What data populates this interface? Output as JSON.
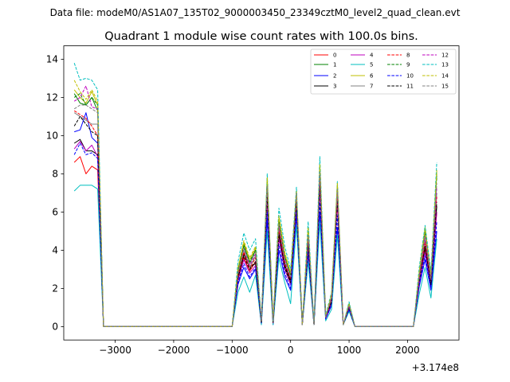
{
  "suptitle": "Data file: modeM0/AS1A07_135T02_9000003450_23349cztM0_level2_quad_clean.evt",
  "chart_data": {
    "type": "line",
    "title": "Quadrant 1 module wise count rates with 100.0s bins.",
    "xlabel": "",
    "ylabel": "",
    "x_offset_label": "+3.174e8",
    "xlim": [
      -3880,
      2880
    ],
    "ylim": [
      -0.7,
      14.7
    ],
    "xticks": [
      -3000,
      -2000,
      -1000,
      0,
      1000,
      2000
    ],
    "xtick_labels": [
      "−3000",
      "−2000",
      "−1000",
      "0",
      "1000",
      "2000"
    ],
    "yticks": [
      0,
      2,
      4,
      6,
      8,
      10,
      12,
      14
    ],
    "ytick_labels": [
      "0",
      "2",
      "4",
      "6",
      "8",
      "10",
      "12",
      "14"
    ],
    "grid": false,
    "legend_position": "top-right",
    "x": [
      -3700,
      -3600,
      -3500,
      -3400,
      -3300,
      -3200,
      -3100,
      -3000,
      -2900,
      -2800,
      -2700,
      -2600,
      -2500,
      -2400,
      -2300,
      -2200,
      -2100,
      -2000,
      -1900,
      -1800,
      -1700,
      -1600,
      -1500,
      -1400,
      -1300,
      -1200,
      -1100,
      -1000,
      -900,
      -800,
      -700,
      -600,
      -500,
      -400,
      -300,
      -200,
      -100,
      0,
      100,
      200,
      300,
      400,
      500,
      600,
      700,
      800,
      900,
      1000,
      1100,
      1200,
      1300,
      1400,
      1500,
      1600,
      1700,
      1800,
      1900,
      2000,
      2100,
      2200,
      2300,
      2400,
      2500
    ],
    "series": [
      {
        "name": "0",
        "color": "#ff0000",
        "dash": "solid",
        "values": [
          8.6,
          8.9,
          8.0,
          8.4,
          8.2,
          0,
          0,
          0,
          0,
          0,
          0,
          0,
          0,
          0,
          0,
          0,
          0,
          0,
          0,
          0,
          0,
          0,
          0,
          0,
          0,
          0,
          0,
          0,
          2.6,
          3.6,
          2.9,
          3.4,
          0.2,
          7.0,
          0.2,
          4.7,
          3.0,
          2.3,
          6.3,
          0.1,
          4.5,
          0.1,
          7.3,
          0.5,
          1.5,
          6.6,
          0.1,
          1.0,
          0,
          0,
          0,
          0,
          0,
          0,
          0,
          0,
          0,
          0,
          0,
          2.4,
          4.0,
          2.4,
          6.0
        ]
      },
      {
        "name": "1",
        "color": "#008000",
        "dash": "solid",
        "values": [
          12.2,
          11.7,
          11.6,
          12.0,
          11.3,
          0,
          0,
          0,
          0,
          0,
          0,
          0,
          0,
          0,
          0,
          0,
          0,
          0,
          0,
          0,
          0,
          0,
          0,
          0,
          0,
          0,
          0,
          0,
          2.9,
          4.3,
          3.3,
          4.0,
          0.3,
          7.7,
          0.3,
          5.6,
          3.7,
          2.7,
          7.0,
          0.1,
          4.9,
          0.1,
          8.3,
          0.5,
          1.6,
          7.3,
          0.1,
          1.2,
          0,
          0,
          0,
          0,
          0,
          0,
          0,
          0,
          0,
          0,
          0,
          2.7,
          5.0,
          2.6,
          8.0
        ]
      },
      {
        "name": "2",
        "color": "#0000ff",
        "dash": "solid",
        "values": [
          10.2,
          10.3,
          11.2,
          9.9,
          9.6,
          0,
          0,
          0,
          0,
          0,
          0,
          0,
          0,
          0,
          0,
          0,
          0,
          0,
          0,
          0,
          0,
          0,
          0,
          0,
          0,
          0,
          0,
          0,
          2.2,
          3.1,
          2.5,
          3.0,
          0.1,
          5.6,
          0.1,
          4.0,
          2.6,
          1.9,
          5.8,
          0.1,
          3.8,
          0.1,
          6.0,
          0.4,
          1.1,
          5.2,
          0.1,
          0.9,
          0,
          0,
          0,
          0,
          0,
          0,
          0,
          0,
          0,
          0,
          0,
          2.1,
          3.5,
          1.9,
          5.0
        ]
      },
      {
        "name": "3",
        "color": "#000000",
        "dash": "solid",
        "values": [
          9.6,
          9.8,
          9.2,
          9.2,
          9.0,
          0,
          0,
          0,
          0,
          0,
          0,
          0,
          0,
          0,
          0,
          0,
          0,
          0,
          0,
          0,
          0,
          0,
          0,
          0,
          0,
          0,
          0,
          0,
          2.5,
          3.8,
          3.1,
          3.3,
          0.2,
          6.9,
          0.2,
          4.9,
          3.2,
          2.4,
          6.6,
          0.1,
          4.2,
          0.1,
          7.6,
          0.5,
          1.3,
          6.8,
          0.1,
          1.1,
          0,
          0,
          0,
          0,
          0,
          0,
          0,
          0,
          0,
          0,
          0,
          2.3,
          4.2,
          2.2,
          6.3
        ]
      },
      {
        "name": "4",
        "color": "#bf00bf",
        "dash": "solid",
        "values": [
          9.3,
          9.7,
          9.2,
          9.5,
          8.9,
          0,
          0,
          0,
          0,
          0,
          0,
          0,
          0,
          0,
          0,
          0,
          0,
          0,
          0,
          0,
          0,
          0,
          0,
          0,
          0,
          0,
          0,
          0,
          2.4,
          3.5,
          2.8,
          3.2,
          0.2,
          6.5,
          0.2,
          4.6,
          3.0,
          2.2,
          6.2,
          0.1,
          4.0,
          0.1,
          7.1,
          0.4,
          1.2,
          6.4,
          0.1,
          1.0,
          0,
          0,
          0,
          0,
          0,
          0,
          0,
          0,
          0,
          0,
          0,
          2.3,
          3.9,
          2.1,
          6.0
        ]
      },
      {
        "name": "5",
        "color": "#00bfbf",
        "dash": "solid",
        "values": [
          7.1,
          7.4,
          7.4,
          7.4,
          7.2,
          0,
          0,
          0,
          0,
          0,
          0,
          0,
          0,
          0,
          0,
          0,
          0,
          0,
          0,
          0,
          0,
          0,
          0,
          0,
          0,
          0,
          0,
          0,
          1.8,
          2.6,
          1.8,
          2.7,
          0.1,
          5.0,
          0.1,
          3.6,
          2.3,
          1.2,
          5.3,
          0.1,
          3.4,
          0.1,
          5.5,
          0.3,
          0.9,
          4.8,
          0.1,
          0.8,
          0,
          0,
          0,
          0,
          0,
          0,
          0,
          0,
          0,
          0,
          0,
          1.7,
          3.1,
          1.5,
          4.6
        ]
      },
      {
        "name": "6",
        "color": "#bfbf00",
        "dash": "solid",
        "values": [
          12.4,
          12.0,
          11.7,
          12.3,
          11.6,
          0,
          0,
          0,
          0,
          0,
          0,
          0,
          0,
          0,
          0,
          0,
          0,
          0,
          0,
          0,
          0,
          0,
          0,
          0,
          0,
          0,
          0,
          0,
          3.0,
          4.4,
          3.5,
          4.1,
          0.3,
          7.8,
          0.3,
          5.7,
          3.8,
          2.8,
          7.1,
          0.1,
          5.1,
          0.1,
          8.4,
          0.5,
          1.6,
          7.5,
          0.1,
          1.2,
          0,
          0,
          0,
          0,
          0,
          0,
          0,
          0,
          0,
          0,
          0,
          2.8,
          5.2,
          2.7,
          8.1
        ]
      },
      {
        "name": "7",
        "color": "#808080",
        "dash": "solid",
        "values": [
          11.2,
          11.0,
          10.8,
          10.6,
          10.6,
          0,
          0,
          0,
          0,
          0,
          0,
          0,
          0,
          0,
          0,
          0,
          0,
          0,
          0,
          0,
          0,
          0,
          0,
          0,
          0,
          0,
          0,
          0,
          2.7,
          4.0,
          3.1,
          3.7,
          0.2,
          7.2,
          0.2,
          5.2,
          3.4,
          2.5,
          6.8,
          0.1,
          4.6,
          0.1,
          7.8,
          0.5,
          1.4,
          7.0,
          0.1,
          1.1,
          0,
          0,
          0,
          0,
          0,
          0,
          0,
          0,
          0,
          0,
          0,
          2.5,
          4.5,
          2.4,
          7.0
        ]
      },
      {
        "name": "8",
        "color": "#ff0000",
        "dash": "dashed",
        "values": [
          11.3,
          11.1,
          10.9,
          10.5,
          10.0,
          0,
          0,
          0,
          0,
          0,
          0,
          0,
          0,
          0,
          0,
          0,
          0,
          0,
          0,
          0,
          0,
          0,
          0,
          0,
          0,
          0,
          0,
          0,
          2.6,
          3.9,
          3.0,
          3.6,
          0.2,
          7.1,
          0.2,
          5.1,
          3.3,
          2.5,
          6.7,
          0.1,
          4.5,
          0.1,
          7.7,
          0.5,
          1.4,
          6.9,
          0.1,
          1.1,
          0,
          0,
          0,
          0,
          0,
          0,
          0,
          0,
          0,
          0,
          0,
          2.5,
          4.4,
          2.3,
          6.8
        ]
      },
      {
        "name": "9",
        "color": "#008000",
        "dash": "dashed",
        "values": [
          12.0,
          12.2,
          11.6,
          12.0,
          11.6,
          0,
          0,
          0,
          0,
          0,
          0,
          0,
          0,
          0,
          0,
          0,
          0,
          0,
          0,
          0,
          0,
          0,
          0,
          0,
          0,
          0,
          0,
          0,
          2.9,
          4.2,
          3.4,
          4.0,
          0.3,
          7.6,
          0.3,
          5.5,
          3.6,
          2.7,
          6.9,
          0.1,
          4.9,
          0.1,
          8.2,
          0.5,
          1.6,
          7.3,
          0.1,
          1.2,
          0,
          0,
          0,
          0,
          0,
          0,
          0,
          0,
          0,
          0,
          0,
          2.7,
          5.0,
          2.6,
          7.9
        ]
      },
      {
        "name": "10",
        "color": "#0000ff",
        "dash": "dashed",
        "values": [
          9.0,
          9.6,
          9.0,
          9.1,
          8.8,
          0,
          0,
          0,
          0,
          0,
          0,
          0,
          0,
          0,
          0,
          0,
          0,
          0,
          0,
          0,
          0,
          0,
          0,
          0,
          0,
          0,
          0,
          0,
          2.3,
          3.3,
          2.6,
          3.1,
          0.2,
          6.0,
          0.2,
          4.3,
          2.8,
          2.0,
          6.0,
          0.1,
          3.9,
          0.1,
          6.5,
          0.4,
          1.2,
          5.8,
          0.1,
          0.9,
          0,
          0,
          0,
          0,
          0,
          0,
          0,
          0,
          0,
          0,
          0,
          2.2,
          3.7,
          2.0,
          5.5
        ]
      },
      {
        "name": "11",
        "color": "#000000",
        "dash": "dashed",
        "values": [
          10.5,
          11.0,
          10.6,
          10.2,
          10.0,
          0,
          0,
          0,
          0,
          0,
          0,
          0,
          0,
          0,
          0,
          0,
          0,
          0,
          0,
          0,
          0,
          0,
          0,
          0,
          0,
          0,
          0,
          0,
          2.6,
          3.7,
          3.0,
          3.4,
          0.2,
          6.8,
          0.2,
          4.8,
          3.1,
          2.3,
          6.5,
          0.1,
          4.3,
          0.1,
          7.4,
          0.5,
          1.3,
          6.6,
          0.1,
          1.0,
          0,
          0,
          0,
          0,
          0,
          0,
          0,
          0,
          0,
          0,
          0,
          2.4,
          4.2,
          2.2,
          6.5
        ]
      },
      {
        "name": "12",
        "color": "#bf00bf",
        "dash": "dashed",
        "values": [
          11.8,
          12.0,
          12.6,
          11.5,
          11.4,
          0,
          0,
          0,
          0,
          0,
          0,
          0,
          0,
          0,
          0,
          0,
          0,
          0,
          0,
          0,
          0,
          0,
          0,
          0,
          0,
          0,
          0,
          0,
          2.8,
          4.1,
          3.2,
          3.8,
          0.3,
          7.3,
          0.3,
          5.3,
          3.5,
          2.6,
          6.9,
          0.1,
          4.7,
          0.1,
          8.0,
          0.5,
          1.5,
          7.1,
          0.1,
          1.1,
          0,
          0,
          0,
          0,
          0,
          0,
          0,
          0,
          0,
          0,
          0,
          2.6,
          4.7,
          2.5,
          7.3
        ]
      },
      {
        "name": "13",
        "color": "#00bfbf",
        "dash": "dashed",
        "values": [
          13.8,
          12.9,
          13.0,
          12.9,
          12.4,
          0,
          0,
          0,
          0,
          0,
          0,
          0,
          0,
          0,
          0,
          0,
          0,
          0,
          0,
          0,
          0,
          0,
          0,
          0,
          0,
          0,
          0,
          0,
          3.4,
          4.9,
          4.0,
          4.6,
          0.3,
          8.0,
          0.3,
          6.2,
          4.2,
          3.0,
          7.3,
          0.1,
          5.5,
          0.1,
          8.9,
          0.6,
          1.8,
          7.6,
          0.1,
          1.3,
          0,
          0,
          0,
          0,
          0,
          0,
          0,
          0,
          0,
          0,
          0,
          3.1,
          5.3,
          2.9,
          8.6
        ]
      },
      {
        "name": "14",
        "color": "#bfbf00",
        "dash": "dashed",
        "values": [
          12.9,
          12.3,
          11.9,
          12.4,
          11.8,
          0,
          0,
          0,
          0,
          0,
          0,
          0,
          0,
          0,
          0,
          0,
          0,
          0,
          0,
          0,
          0,
          0,
          0,
          0,
          0,
          0,
          0,
          0,
          3.1,
          4.5,
          3.6,
          4.2,
          0.3,
          7.8,
          0.3,
          5.8,
          3.9,
          2.8,
          7.1,
          0.1,
          5.2,
          0.1,
          8.5,
          0.5,
          1.7,
          7.5,
          0.1,
          1.2,
          0,
          0,
          0,
          0,
          0,
          0,
          0,
          0,
          0,
          0,
          0,
          2.9,
          5.1,
          2.7,
          8.2
        ]
      },
      {
        "name": "15",
        "color": "#808080",
        "dash": "dashed",
        "values": [
          11.4,
          11.6,
          11.6,
          11.4,
          11.2,
          0,
          0,
          0,
          0,
          0,
          0,
          0,
          0,
          0,
          0,
          0,
          0,
          0,
          0,
          0,
          0,
          0,
          0,
          0,
          0,
          0,
          0,
          0,
          2.8,
          4.1,
          3.3,
          3.9,
          0.3,
          7.4,
          0.3,
          5.4,
          3.6,
          2.6,
          7.0,
          0.1,
          4.8,
          0.1,
          8.1,
          0.5,
          1.5,
          7.2,
          0.1,
          1.1,
          0,
          0,
          0,
          0,
          0,
          0,
          0,
          0,
          0,
          0,
          0,
          2.6,
          4.8,
          2.5,
          7.5
        ]
      }
    ]
  }
}
